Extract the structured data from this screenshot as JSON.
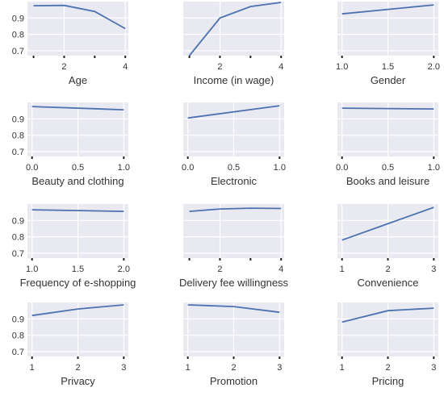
{
  "colors": {
    "panel_background": "#e9e9f1",
    "grid": "#ffffff",
    "line": "#4c72b0",
    "text": "#333333"
  },
  "chart_data": [
    {
      "type": "line",
      "xlabel": "Age",
      "x": [
        1,
        2,
        3,
        4
      ],
      "y": [
        0.975,
        0.977,
        0.94,
        0.835
      ],
      "xlim": [
        0.8,
        4.1
      ],
      "ylim": [
        0.67,
        1.0
      ],
      "xticks": [
        "2",
        "4"
      ],
      "yticks": [
        "0.7",
        "0.8",
        "0.9"
      ],
      "grid": true
    },
    {
      "type": "line",
      "xlabel": "Income (in wage)",
      "x": [
        1,
        2,
        3,
        4
      ],
      "y": [
        0.67,
        0.9,
        0.97,
        0.995
      ],
      "xlim": [
        0.8,
        4.1
      ],
      "ylim": [
        0.67,
        1.0
      ],
      "xticks": [
        "2",
        "4"
      ],
      "yticks": [],
      "grid": true
    },
    {
      "type": "line",
      "xlabel": "Gender",
      "x": [
        1.0,
        2.0
      ],
      "y": [
        0.925,
        0.98
      ],
      "xlim": [
        0.95,
        2.05
      ],
      "ylim": [
        0.67,
        1.0
      ],
      "xticks": [
        "1.0",
        "1.5",
        "2.0"
      ],
      "yticks": [],
      "grid": true
    },
    {
      "type": "line",
      "xlabel": "Beauty and clothing",
      "x": [
        0.0,
        1.0
      ],
      "y": [
        0.975,
        0.955
      ],
      "xlim": [
        -0.05,
        1.05
      ],
      "ylim": [
        0.67,
        1.0
      ],
      "xticks": [
        "0.0",
        "0.5",
        "1.0"
      ],
      "yticks": [
        "0.7",
        "0.8",
        "0.9"
      ],
      "grid": true
    },
    {
      "type": "line",
      "xlabel": "Electronic",
      "x": [
        0.0,
        1.0
      ],
      "y": [
        0.905,
        0.98
      ],
      "xlim": [
        -0.05,
        1.05
      ],
      "ylim": [
        0.67,
        1.0
      ],
      "xticks": [
        "0.0",
        "0.5",
        "1.0"
      ],
      "yticks": [],
      "grid": true
    },
    {
      "type": "line",
      "xlabel": "Books and leisure",
      "x": [
        0.0,
        1.0
      ],
      "y": [
        0.965,
        0.96
      ],
      "xlim": [
        -0.05,
        1.05
      ],
      "ylim": [
        0.67,
        1.0
      ],
      "xticks": [
        "0.0",
        "0.5",
        "1.0"
      ],
      "yticks": [],
      "grid": true
    },
    {
      "type": "line",
      "xlabel": "Frequency of e-shopping",
      "x": [
        1.0,
        2.0
      ],
      "y": [
        0.965,
        0.955
      ],
      "xlim": [
        0.95,
        2.05
      ],
      "ylim": [
        0.67,
        1.0
      ],
      "xticks": [
        "1.0",
        "1.5",
        "2.0"
      ],
      "yticks": [
        "0.7",
        "0.8",
        "0.9"
      ],
      "grid": true
    },
    {
      "type": "line",
      "xlabel": "Delivery fee willingness",
      "x": [
        1,
        2,
        3,
        4
      ],
      "y": [
        0.955,
        0.97,
        0.975,
        0.973
      ],
      "xlim": [
        0.8,
        4.1
      ],
      "ylim": [
        0.67,
        1.0
      ],
      "xticks": [
        "2",
        "4"
      ],
      "yticks": [],
      "grid": true
    },
    {
      "type": "line",
      "xlabel": "Convenience",
      "x": [
        1,
        2,
        3
      ],
      "y": [
        0.78,
        0.88,
        0.98
      ],
      "xlim": [
        0.9,
        3.1
      ],
      "ylim": [
        0.67,
        1.0
      ],
      "xticks": [
        "1",
        "2",
        "3"
      ],
      "yticks": [],
      "grid": true
    },
    {
      "type": "line",
      "xlabel": "Privacy",
      "x": [
        1,
        2,
        3
      ],
      "y": [
        0.92,
        0.96,
        0.985
      ],
      "xlim": [
        0.9,
        3.1
      ],
      "ylim": [
        0.67,
        1.0
      ],
      "xticks": [
        "1",
        "2",
        "3"
      ],
      "yticks": [
        "0.7",
        "0.8",
        "0.9"
      ],
      "grid": true
    },
    {
      "type": "line",
      "xlabel": "Promotion",
      "x": [
        1,
        2,
        3
      ],
      "y": [
        0.985,
        0.975,
        0.94
      ],
      "xlim": [
        0.9,
        3.1
      ],
      "ylim": [
        0.67,
        1.0
      ],
      "xticks": [
        "1",
        "2",
        "3"
      ],
      "yticks": [],
      "grid": true
    },
    {
      "type": "line",
      "xlabel": "Pricing",
      "x": [
        1,
        2,
        3
      ],
      "y": [
        0.88,
        0.95,
        0.965
      ],
      "xlim": [
        0.9,
        3.1
      ],
      "ylim": [
        0.67,
        1.0
      ],
      "xticks": [
        "1",
        "2",
        "3"
      ],
      "yticks": [],
      "grid": true
    }
  ]
}
